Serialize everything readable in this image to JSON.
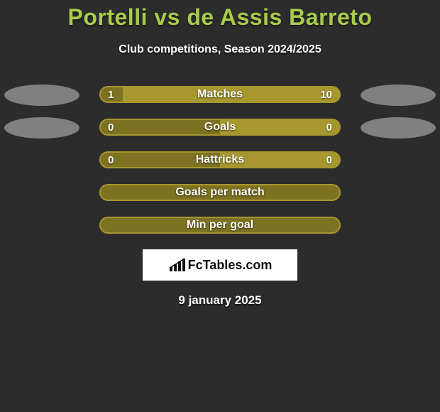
{
  "background_color": "#2c2c2c",
  "olive": "#a7972f",
  "dark_olive": "#7d7222",
  "border_olive": "#a7972f",
  "avatar_gray": "#808080",
  "text_color": "#ffffff",
  "title_color": "#a9cc4a",
  "title": "Portelli vs de Assis Barreto",
  "subtitle": "Club competitions, Season 2024/2025",
  "date": "9 january 2025",
  "watermark": "FcTables.com",
  "rows": [
    {
      "metric": "Matches",
      "left_value": "1",
      "right_value": "10",
      "left_pct": 9.1,
      "has_avatars": true,
      "avatar_left_color": "#808080",
      "avatar_right_color": "#808080"
    },
    {
      "metric": "Goals",
      "left_value": "0",
      "right_value": "0",
      "left_pct": 50,
      "has_avatars": true,
      "avatar_left_color": "#808080",
      "avatar_right_color": "#808080"
    },
    {
      "metric": "Hattricks",
      "left_value": "0",
      "right_value": "0",
      "left_pct": 50,
      "has_avatars": false
    },
    {
      "metric": "Goals per match",
      "left_value": "",
      "right_value": "",
      "left_pct": 100,
      "has_avatars": false
    },
    {
      "metric": "Min per goal",
      "left_value": "",
      "right_value": "",
      "left_pct": 100,
      "has_avatars": false
    }
  ]
}
